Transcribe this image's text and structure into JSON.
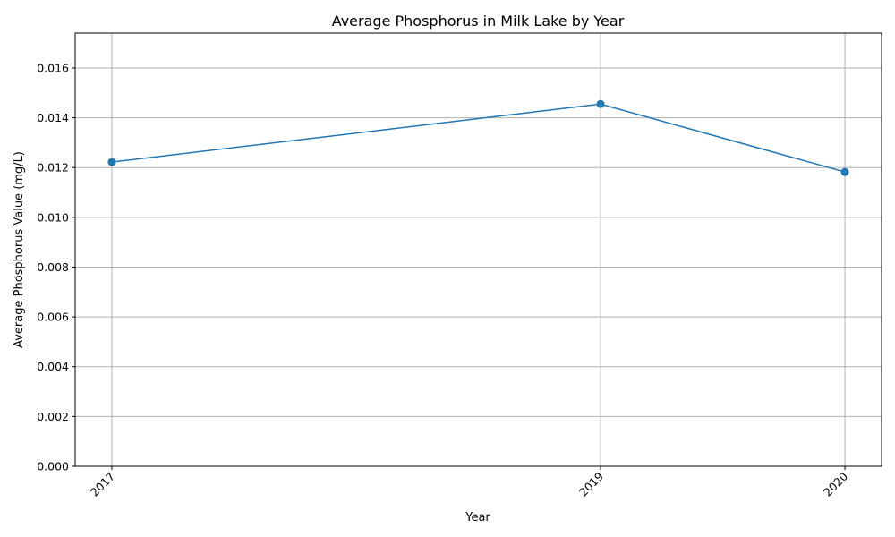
{
  "chart_data": {
    "type": "line",
    "title": "Average Phosphorus in Milk Lake by Year",
    "xlabel": "Year",
    "ylabel": "Average Phosphorus Value (mg/L)",
    "x": [
      2017,
      2019,
      2020
    ],
    "x_tick_labels": [
      "2017",
      "2019",
      "2020"
    ],
    "xlim": [
      2016.85,
      2020.15
    ],
    "y_ticks": [
      0,
      0.002,
      0.004,
      0.006,
      0.008,
      0.01,
      0.012,
      0.014,
      0.016
    ],
    "y_tick_labels": [
      "0.000",
      "0.002",
      "0.004",
      "0.006",
      "0.008",
      "0.010",
      "0.012",
      "0.014",
      "0.016"
    ],
    "ylim": [
      0,
      0.0174
    ],
    "grid": true,
    "series": [
      {
        "values": [
          0.01222,
          0.01455,
          0.01182
        ],
        "color": "#1f77b4",
        "marker": "circle"
      }
    ]
  }
}
